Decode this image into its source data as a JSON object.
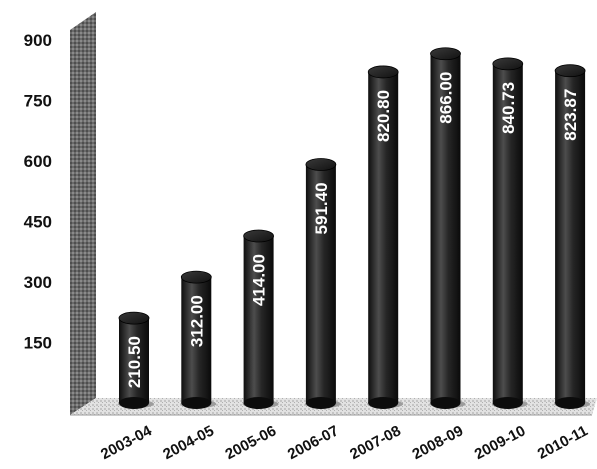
{
  "chart_data": {
    "type": "bar",
    "title": "",
    "xlabel": "",
    "ylabel": "",
    "categories": [
      "2003-04",
      "2004-05",
      "2005-06",
      "2006-07",
      "2007-08",
      "2008-09",
      "2009-10",
      "2010-11"
    ],
    "values": [
      210.5,
      312.0,
      414.0,
      591.4,
      820.8,
      866.0,
      840.73,
      823.87
    ],
    "data_labels": [
      "210.50",
      "312.00",
      "414.00",
      "591.40",
      "820.80",
      "866.00",
      "840.73",
      "823.87"
    ],
    "y_ticks": [
      "150",
      "300",
      "450",
      "600",
      "750",
      "900"
    ],
    "ylim": [
      0,
      900
    ],
    "grid": false,
    "legend": "none",
    "bar_style": "3d-cylinder",
    "colors": {
      "bar": "#1a1a1a",
      "bar_highlight": "#5a5a5a",
      "wall": "#6e6e6e",
      "floor": "#d9d9d9",
      "label": "#ffffff"
    }
  }
}
